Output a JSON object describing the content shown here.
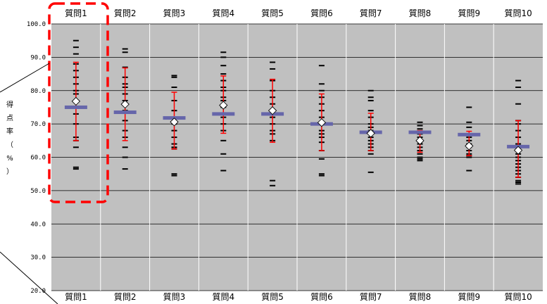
{
  "chart_data": {
    "type": "scatter",
    "title": "",
    "ylabel": "得点率（%）",
    "ylim": [
      20,
      100
    ],
    "yticks": [
      "100.0",
      "90.0",
      "80.0",
      "70.0",
      "60.0",
      "50.0",
      "40.0",
      "30.0",
      "20.0"
    ],
    "grid": true,
    "categories": [
      "質問1",
      "質問2",
      "質問3",
      "質問4",
      "質問5",
      "質問6",
      "質問7",
      "質問8",
      "質問9",
      "質問10"
    ],
    "series": [
      {
        "values": [
          76.8,
          75.9,
          70.6,
          75.6,
          74.0,
          70.4,
          67.2,
          65.0,
          63.4,
          62.1
        ],
        "marker": "diamond"
      },
      {
        "values": [
          75.0,
          73.5,
          71.8,
          73.0,
          73.0,
          70.0,
          67.5,
          67.5,
          66.8,
          63.2
        ],
        "marker": "bar"
      }
    ],
    "error_bars": [
      {
        "low": 65.0,
        "high": 88.5
      },
      {
        "low": 65.0,
        "high": 86.8
      },
      {
        "low": 62.5,
        "high": 79.5
      },
      {
        "low": 67.2,
        "high": 84.4
      },
      {
        "low": 64.5,
        "high": 83.4
      },
      {
        "low": 62.0,
        "high": 79.0
      },
      {
        "low": 62.0,
        "high": 73.2
      },
      {
        "low": 61.5,
        "high": 68.0
      },
      {
        "low": 60.5,
        "high": 67.8
      },
      {
        "low": 54.0,
        "high": 71.0
      }
    ],
    "individual_scores": [
      [
        95,
        93,
        91,
        88,
        86,
        84,
        82,
        80,
        79,
        77,
        73,
        70,
        66,
        65,
        63,
        57,
        56.5
      ],
      [
        92.5,
        91.5,
        87,
        84,
        82,
        81,
        79,
        77,
        74,
        71,
        68,
        66,
        63,
        60,
        56.5
      ],
      [
        84.5,
        84,
        81,
        77,
        74,
        72,
        70,
        68,
        66,
        64,
        63,
        62.5,
        55,
        54.5
      ],
      [
        91.5,
        90,
        87.5,
        85,
        83,
        81,
        80,
        78,
        77,
        75,
        72,
        70,
        68,
        65,
        61,
        56
      ],
      [
        88.5,
        86.5,
        83,
        80,
        78,
        76,
        74,
        72,
        70,
        68,
        67,
        65,
        53,
        51.5
      ],
      [
        87.5,
        82,
        80,
        78,
        76,
        74,
        72,
        70,
        68,
        67,
        66,
        64.5,
        62,
        59.5,
        55,
        54.5
      ],
      [
        80,
        78,
        77,
        74,
        72,
        70,
        69,
        68,
        67,
        66,
        65,
        64,
        63,
        62,
        61,
        55.5
      ],
      [
        70.5,
        69.5,
        68.5,
        67,
        66,
        65,
        64,
        63,
        62,
        61,
        60,
        59.5,
        59
      ],
      [
        75,
        70.5,
        69,
        67,
        66,
        65,
        64,
        63,
        62,
        61,
        60.5,
        60,
        56
      ],
      [
        83,
        81,
        76,
        71,
        70,
        68,
        66,
        64,
        62,
        61,
        60,
        59,
        58,
        57,
        56,
        55,
        54,
        53,
        52.5,
        52
      ]
    ],
    "colors": {
      "plot_background": "#c0c0c0",
      "gridline": "#000000",
      "separator": "#ffffff",
      "error_bar": "#ff0000",
      "mean_bar": "#6666aa",
      "individual_tick": "#000000",
      "diamond_fill": "#ffffff",
      "highlight_box": "#ff0000"
    }
  }
}
